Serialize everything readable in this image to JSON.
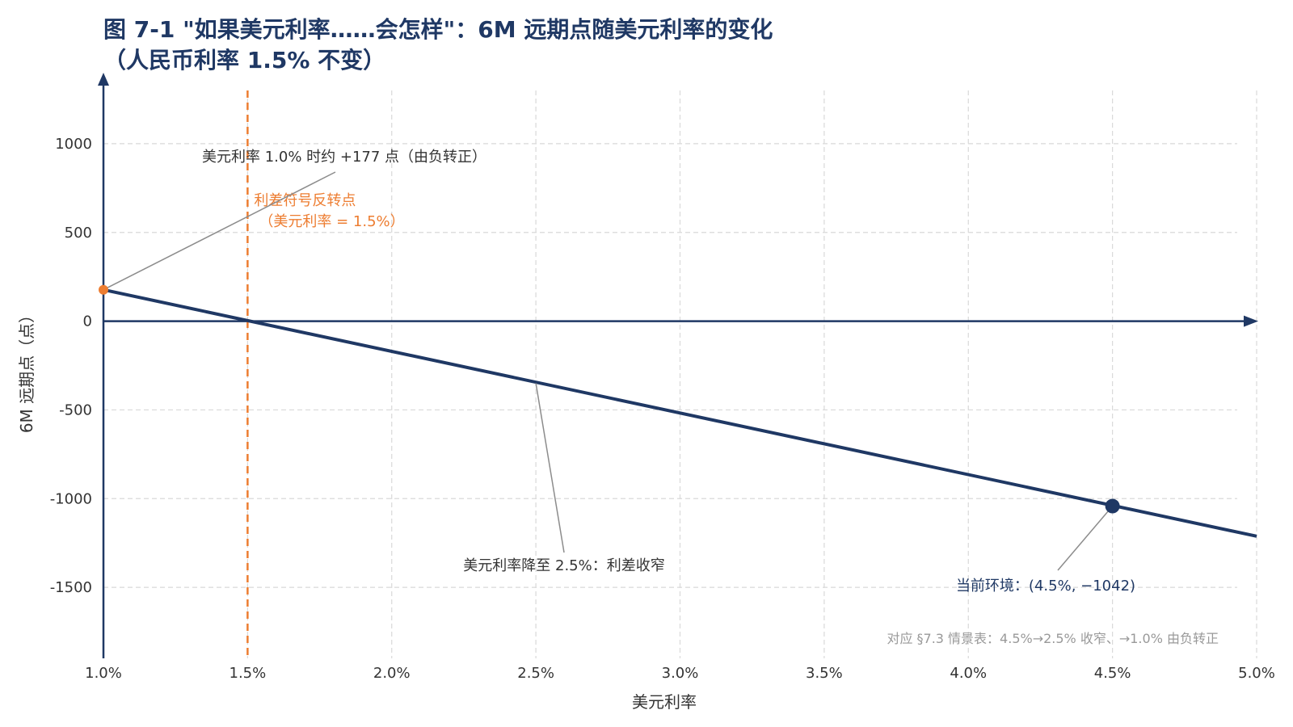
{
  "chart_data": {
    "type": "line",
    "title_line1": "图 7-1 \"如果美元利率……会怎样\"：6M 远期点随美元利率的变化",
    "title_line2": "（人民币利率 1.5% 不变）",
    "xlabel": "美元利率",
    "ylabel": "6M 远期点（点）",
    "xlim": [
      1.0,
      5.0
    ],
    "ylim": [
      -1900,
      1300
    ],
    "x_ticks": [
      1.0,
      1.5,
      2.0,
      2.5,
      3.0,
      3.5,
      4.0,
      4.5,
      5.0
    ],
    "x_tick_labels": [
      "1.0%",
      "1.5%",
      "2.0%",
      "2.5%",
      "3.0%",
      "3.5%",
      "4.0%",
      "4.5%",
      "5.0%"
    ],
    "y_ticks": [
      1000,
      500,
      0,
      -500,
      -1000,
      -1500
    ],
    "y_tick_labels": [
      "1000",
      "500",
      "0",
      "-500",
      "-1000",
      "-1500"
    ],
    "grid": true,
    "series": [
      {
        "x": [
          1.0,
          5.0
        ],
        "y": [
          177,
          -1212
        ]
      }
    ],
    "reference_line": {
      "x": 1.5,
      "label_line1": "利差符号反转点",
      "label_line2": "（美元利率 = 1.5%）"
    },
    "points": [
      {
        "x": 1.0,
        "y": 177,
        "label": "美元利率 1.0% 时约 +177 点（由负转正）"
      },
      {
        "x": 2.5,
        "y": -350,
        "label": "美元利率降至 2.5%：利差收窄"
      },
      {
        "x": 4.5,
        "y": -1042,
        "label": "当前环境：(4.5%, −1042)"
      }
    ],
    "footnote": "对应 §7.3 情景表：4.5%→2.5% 收窄、→1.0% 由负转正"
  },
  "colors": {
    "line": "#1f3864",
    "reference": "#ed7d31",
    "grid": "#d9d9d9",
    "leader": "#8c8c8c",
    "note": "#999999"
  }
}
